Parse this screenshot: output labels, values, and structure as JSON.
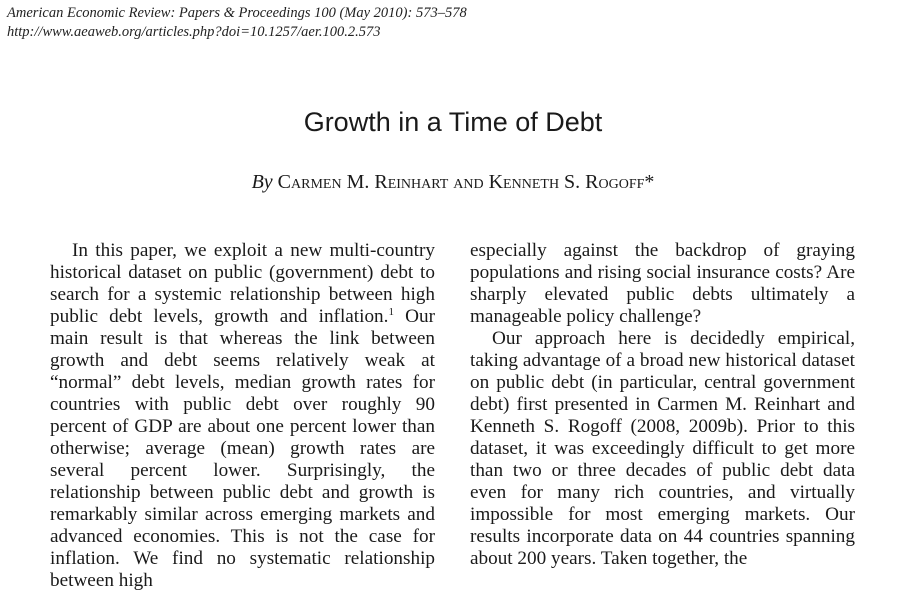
{
  "header": {
    "citation": "American Economic Review: Papers & Proceedings 100 (May 2010): 573–578",
    "url": "http://www.aeaweb.org/articles.php?doi=10.1257/aer.100.2.573"
  },
  "title": "Growth in a Time of Debt",
  "byline": {
    "by": "By",
    "authors": "Carmen M. Reinhart and Kenneth S. Rogoff",
    "marker": "*"
  },
  "body": {
    "left_paragraph": {
      "before_footnote": "In this paper, we exploit a new multi-country historical dataset on public (government) debt to search for a systemic relationship between high public debt levels, growth and inflation.",
      "footnote_marker": "1",
      "after_footnote": " Our main result is that whereas the link between growth and debt seems relatively weak at “normal” debt levels, median growth rates for countries with public debt over roughly 90 percent of GDP are about one percent lower than otherwise; average (mean) growth rates are several percent lower. Surprisingly, the relationship between public debt and growth is remarkably similar across emerging markets and advanced economies. This is not the case for inflation. We find no systematic relationship between high"
    },
    "right_paragraph_1": "especially against the backdrop of graying populations and rising social insurance costs? Are sharply elevated public debts ultimately a manageable policy challenge?",
    "right_paragraph_2": "Our approach here is decidedly empirical, taking advantage of a broad new historical dataset on public debt (in particular, central government debt) first presented in Carmen M. Reinhart and Kenneth S. Rogoff (2008, 2009b). Prior to this dataset, it was exceedingly difficult to get more than two or three decades of public debt data even for many rich countries, and virtually impossible for most emerging markets. Our results incorporate data on 44 countries spanning about 200 years. Taken together, the"
  }
}
